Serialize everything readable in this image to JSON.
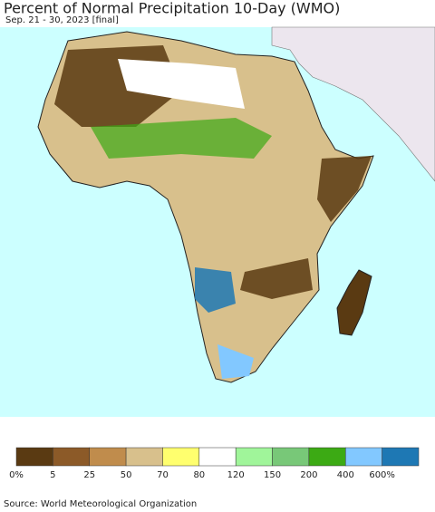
{
  "title": "Percent of Normal Precipitation 10-Day (WMO)",
  "subtitle": "Sep. 21 - 30, 2023 [final]",
  "legend": {
    "colors": [
      "#5a3a12",
      "#8c5a28",
      "#c08c4c",
      "#d8c08c",
      "#ffff6e",
      "#ffffff",
      "#a0f59a",
      "#78c878",
      "#3caa14",
      "#82c8ff",
      "#1e78b4"
    ],
    "labels": [
      "0%",
      "5",
      "25",
      "50",
      "70",
      "80",
      "120",
      "150",
      "200",
      "400",
      "600%"
    ]
  },
  "source": "Source: World Meteorological Organization"
}
